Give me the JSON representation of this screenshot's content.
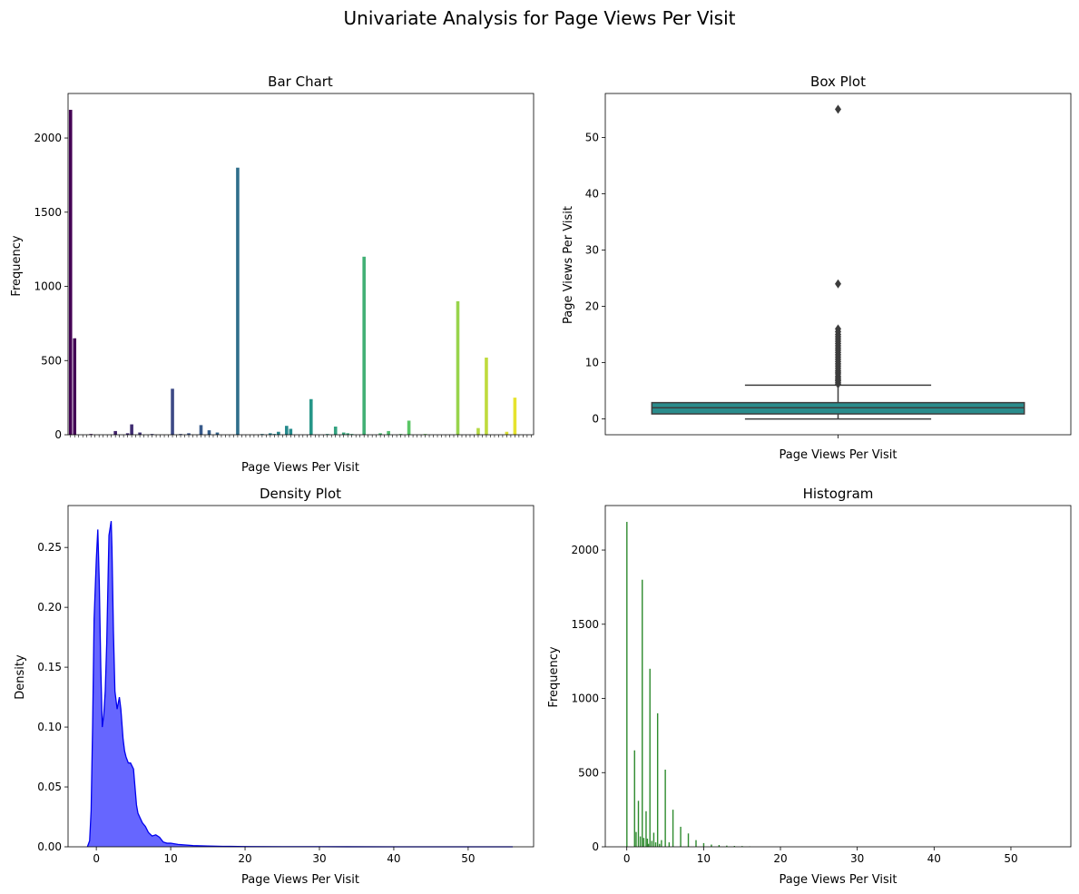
{
  "figure": {
    "title": "Univariate Analysis for Page Views Per Visit"
  },
  "chart_data": [
    {
      "type": "bar",
      "title": "Bar Chart",
      "xlabel": "Page Views Per Visit",
      "ylabel": "Frequency",
      "ylim": [
        0,
        2300
      ],
      "yticks": [
        0,
        500,
        1000,
        1500,
        2000
      ],
      "palette": "viridis",
      "category_count": 114,
      "values": [
        2190,
        650,
        0,
        0,
        0,
        5,
        0,
        0,
        0,
        0,
        0,
        25,
        0,
        0,
        10,
        70,
        0,
        15,
        0,
        0,
        5,
        0,
        0,
        0,
        0,
        310,
        0,
        5,
        0,
        10,
        0,
        0,
        65,
        0,
        30,
        0,
        15,
        0,
        0,
        0,
        0,
        1800,
        0,
        0,
        0,
        0,
        0,
        5,
        0,
        10,
        5,
        20,
        0,
        60,
        40,
        0,
        0,
        0,
        0,
        240,
        0,
        0,
        0,
        5,
        0,
        55,
        0,
        15,
        10,
        5,
        0,
        0,
        1200,
        0,
        0,
        0,
        10,
        0,
        25,
        0,
        0,
        5,
        0,
        95,
        0,
        0,
        0,
        5,
        0,
        0,
        0,
        0,
        0,
        0,
        0,
        900,
        0,
        0,
        0,
        0,
        45,
        0,
        520,
        0,
        0,
        0,
        0,
        20,
        0,
        250,
        0,
        0,
        0,
        0
      ],
      "grid": false
    },
    {
      "type": "box",
      "title": "Box Plot",
      "xlabel": "Page Views Per Visit",
      "ylabel": "Page Views Per Visit",
      "ylim": [
        -2.8,
        57.8
      ],
      "yticks": [
        0,
        10,
        20,
        30,
        40,
        50
      ],
      "box": {
        "min": 0,
        "q1": 0.9,
        "median": 2.0,
        "q3": 2.9,
        "whisker_high": 6.0
      },
      "outliers": [
        6.2,
        6.5,
        6.8,
        7.0,
        7.3,
        7.6,
        8.0,
        8.3,
        8.6,
        9.0,
        9.4,
        9.8,
        10.2,
        10.6,
        11.0,
        11.4,
        11.8,
        12.2,
        12.6,
        13.0,
        13.4,
        13.8,
        14.2,
        14.6,
        15.0,
        15.5,
        16.0,
        24.0,
        55.0
      ],
      "color": "#2a8c8c",
      "grid": false
    },
    {
      "type": "area",
      "title": "Density Plot",
      "xlabel": "Page Views Per Visit",
      "ylabel": "Density",
      "xlim": [
        -3.8,
        58.8
      ],
      "ylim": [
        0,
        0.285
      ],
      "xticks": [
        0,
        10,
        20,
        30,
        40,
        50
      ],
      "yticks": [
        0.0,
        0.05,
        0.1,
        0.15,
        0.2,
        0.25
      ],
      "x": [
        -1.2,
        -0.9,
        -0.7,
        -0.5,
        -0.3,
        0,
        0.2,
        0.4,
        0.6,
        0.8,
        1.0,
        1.2,
        1.4,
        1.7,
        2.0,
        2.1,
        2.3,
        2.5,
        2.8,
        3.1,
        3.3,
        3.6,
        3.8,
        4.0,
        4.3,
        4.6,
        5.0,
        5.2,
        5.4,
        5.6,
        5.9,
        6.2,
        6.6,
        7.0,
        7.5,
        8.0,
        8.5,
        9.0,
        9.5,
        10.0,
        11.0,
        12.0,
        13.0,
        14.0,
        15.0,
        17.0,
        20.0,
        25.0,
        30.0,
        40.0,
        50.0,
        56.0
      ],
      "y": [
        0.0,
        0.005,
        0.03,
        0.1,
        0.19,
        0.24,
        0.265,
        0.22,
        0.15,
        0.1,
        0.11,
        0.13,
        0.17,
        0.26,
        0.272,
        0.25,
        0.18,
        0.13,
        0.115,
        0.125,
        0.115,
        0.09,
        0.08,
        0.075,
        0.07,
        0.07,
        0.065,
        0.05,
        0.035,
        0.028,
        0.024,
        0.02,
        0.017,
        0.012,
        0.009,
        0.01,
        0.008,
        0.004,
        0.003,
        0.003,
        0.002,
        0.0015,
        0.001,
        0.0008,
        0.0006,
        0.0004,
        0.0002,
        0.0001,
        0.0001,
        0.0,
        0.0,
        0.0
      ],
      "fill": "#6666ff",
      "line": "#0000ee",
      "grid": false
    },
    {
      "type": "bar",
      "title": "Histogram",
      "xlabel": "Page Views Per Visit",
      "ylabel": "Frequency",
      "xlim": [
        -2.8,
        57.8
      ],
      "ylim": [
        0,
        2300
      ],
      "xticks": [
        0,
        10,
        20,
        30,
        40,
        50
      ],
      "yticks": [
        0,
        500,
        1000,
        1500,
        2000
      ],
      "x": [
        0.0,
        1.0,
        1.2,
        1.5,
        1.75,
        2.0,
        2.2,
        2.5,
        2.67,
        2.8,
        3.0,
        3.25,
        3.5,
        3.75,
        4.0,
        4.25,
        4.5,
        5.0,
        5.5,
        6.0,
        7.0,
        8.0,
        9.0,
        10.0,
        11.0,
        12.0,
        13.0,
        14.0,
        15.0,
        16.0
      ],
      "values": [
        2190,
        650,
        100,
        310,
        70,
        1800,
        60,
        240,
        55,
        20,
        1200,
        40,
        95,
        30,
        900,
        20,
        45,
        520,
        30,
        250,
        135,
        90,
        45,
        25,
        15,
        12,
        8,
        6,
        5,
        3
      ],
      "color": "#2e8b2e",
      "grid": false
    }
  ]
}
